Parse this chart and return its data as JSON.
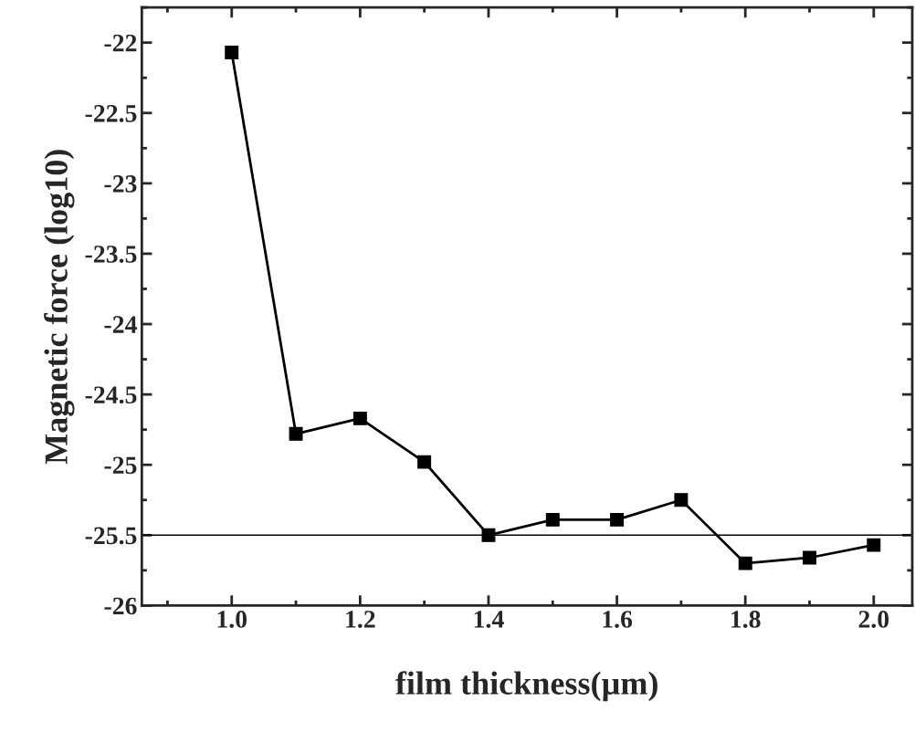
{
  "chart_data": {
    "type": "line",
    "xlabel": "film thickness(µm)",
    "ylabel": "Magnetic force (log10)",
    "x": [
      1.0,
      1.1,
      1.2,
      1.3,
      1.4,
      1.5,
      1.6,
      1.7,
      1.8,
      1.9,
      2.0
    ],
    "series": [
      {
        "color": "#000000",
        "values": [
          -22.07,
          -24.78,
          -24.67,
          -24.98,
          -25.5,
          -25.39,
          -25.39,
          -25.25,
          -25.7,
          -25.66,
          -25.57
        ]
      }
    ],
    "xlim": [
      0.86,
      2.06
    ],
    "ylim": [
      -26,
      -21.75
    ],
    "xticks": [
      {
        "value": 1.0,
        "label": "1.0"
      },
      1.2,
      1.4,
      1.6,
      1.8,
      {
        "value": 2.0,
        "label": "2.0"
      }
    ],
    "yticks": [
      -26,
      -25.5,
      -25,
      -24.5,
      -24,
      -23.5,
      -23,
      -22.5,
      -22
    ],
    "ref_lines": [
      {
        "axis": "y",
        "value": -25.5,
        "color": "#000000"
      }
    ],
    "marker": "square",
    "line_style": "solid",
    "grid": false,
    "legend": false
  }
}
